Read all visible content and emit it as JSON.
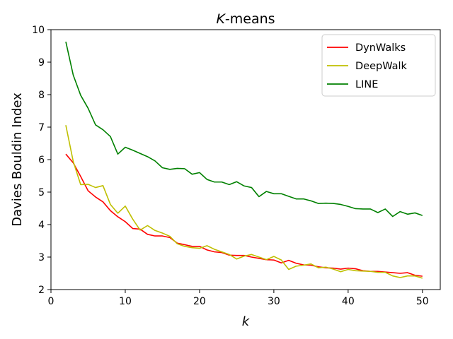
{
  "chart_data": {
    "type": "line",
    "title": "K-means",
    "title_italic_part": "K",
    "title_rest": "-means",
    "xlabel": "k",
    "ylabel": "Davies Bouldin Index",
    "xlim": [
      0,
      52.4
    ],
    "ylim": [
      2,
      10
    ],
    "xticks": [
      0,
      10,
      20,
      30,
      40,
      50
    ],
    "yticks": [
      2,
      3,
      4,
      5,
      6,
      7,
      8,
      9,
      10
    ],
    "grid": false,
    "legend_position": "top-right",
    "x": [
      2,
      3,
      4,
      5,
      6,
      7,
      8,
      9,
      10,
      11,
      12,
      13,
      14,
      15,
      16,
      17,
      18,
      19,
      20,
      21,
      22,
      23,
      24,
      25,
      26,
      27,
      28,
      29,
      30,
      31,
      32,
      33,
      34,
      35,
      36,
      37,
      38,
      39,
      40,
      41,
      42,
      43,
      44,
      45,
      46,
      47,
      48,
      49,
      50
    ],
    "series": [
      {
        "name": "DynWalks",
        "color": "#ff0000",
        "values": [
          6.17,
          5.9,
          5.48,
          5.04,
          4.85,
          4.7,
          4.43,
          4.24,
          4.09,
          3.88,
          3.86,
          3.7,
          3.65,
          3.65,
          3.6,
          3.43,
          3.38,
          3.33,
          3.33,
          3.22,
          3.16,
          3.14,
          3.06,
          3.05,
          3.05,
          3.0,
          2.96,
          2.92,
          2.91,
          2.82,
          2.9,
          2.81,
          2.76,
          2.75,
          2.7,
          2.67,
          2.66,
          2.63,
          2.66,
          2.64,
          2.58,
          2.56,
          2.56,
          2.54,
          2.52,
          2.5,
          2.52,
          2.44,
          2.41
        ]
      },
      {
        "name": "DeepWalk",
        "color": "#bfbf00",
        "values": [
          7.06,
          5.94,
          5.23,
          5.24,
          5.14,
          5.2,
          4.62,
          4.35,
          4.57,
          4.17,
          3.83,
          3.97,
          3.82,
          3.74,
          3.64,
          3.41,
          3.33,
          3.29,
          3.27,
          3.35,
          3.24,
          3.16,
          3.08,
          2.94,
          3.03,
          3.08,
          3.0,
          2.92,
          3.02,
          2.91,
          2.62,
          2.72,
          2.75,
          2.79,
          2.67,
          2.69,
          2.63,
          2.55,
          2.62,
          2.58,
          2.57,
          2.56,
          2.53,
          2.53,
          2.42,
          2.37,
          2.42,
          2.42,
          2.35
        ]
      },
      {
        "name": "LINE",
        "color": "#008000",
        "values": [
          9.63,
          8.6,
          7.98,
          7.58,
          7.07,
          6.92,
          6.71,
          6.17,
          6.38,
          6.29,
          6.19,
          6.09,
          5.96,
          5.75,
          5.7,
          5.73,
          5.72,
          5.55,
          5.6,
          5.39,
          5.31,
          5.31,
          5.23,
          5.32,
          5.19,
          5.14,
          4.86,
          5.02,
          4.95,
          4.95,
          4.87,
          4.79,
          4.79,
          4.73,
          4.65,
          4.66,
          4.65,
          4.62,
          4.56,
          4.49,
          4.48,
          4.48,
          4.37,
          4.48,
          4.25,
          4.4,
          4.32,
          4.36,
          4.28
        ]
      }
    ]
  }
}
